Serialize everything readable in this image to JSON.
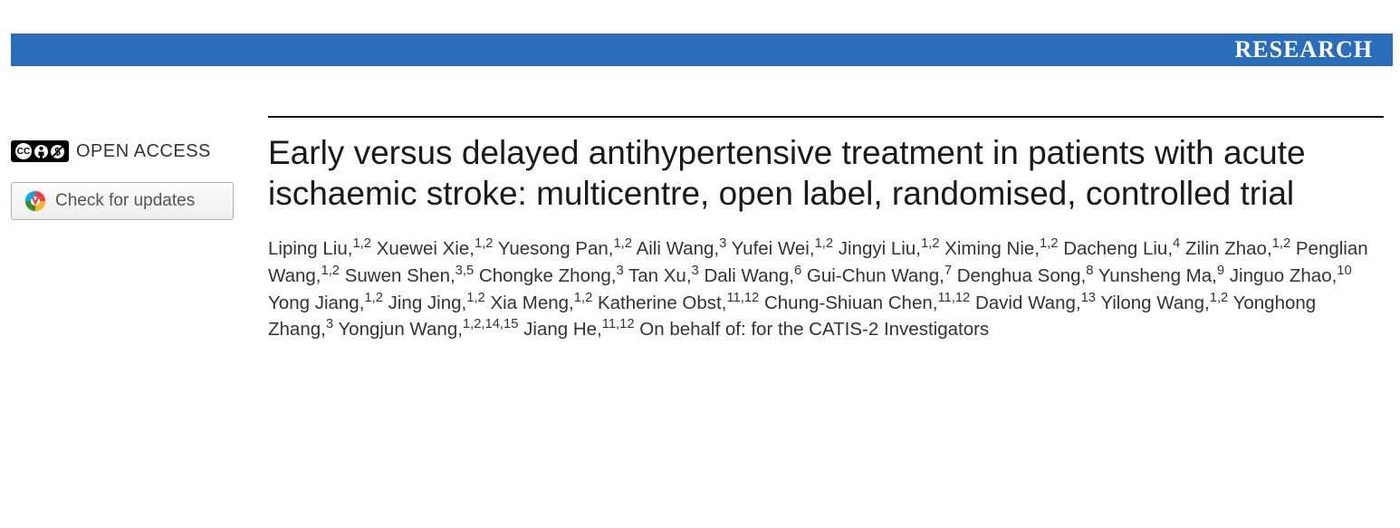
{
  "banner": {
    "label": "RESEARCH",
    "background_color": "#2a6ebb",
    "text_color": "#ffffff"
  },
  "sidebar": {
    "open_access_label": "OPEN ACCESS",
    "cc_text": "CC",
    "check_updates_label": "Check for updates"
  },
  "article": {
    "title": "Early versus delayed antihypertensive treatment in patients with acute ischaemic stroke: multicentre, open label, randomised, controlled trial",
    "authors": [
      {
        "name": "Liping Liu",
        "aff": "1,2"
      },
      {
        "name": "Xuewei Xie",
        "aff": "1,2"
      },
      {
        "name": "Yuesong Pan",
        "aff": "1,2"
      },
      {
        "name": "Aili Wang",
        "aff": "3"
      },
      {
        "name": "Yufei Wei",
        "aff": "1,2"
      },
      {
        "name": "Jingyi Liu",
        "aff": "1,2"
      },
      {
        "name": "Ximing Nie",
        "aff": "1,2"
      },
      {
        "name": "Dacheng Liu",
        "aff": "4"
      },
      {
        "name": "Zilin Zhao",
        "aff": "1,2"
      },
      {
        "name": "Penglian Wang",
        "aff": "1,2"
      },
      {
        "name": "Suwen Shen",
        "aff": "3,5"
      },
      {
        "name": "Chongke Zhong",
        "aff": "3"
      },
      {
        "name": "Tan Xu",
        "aff": "3"
      },
      {
        "name": "Dali Wang",
        "aff": "6"
      },
      {
        "name": "Gui-Chun Wang",
        "aff": "7"
      },
      {
        "name": "Denghua Song",
        "aff": "8"
      },
      {
        "name": "Yunsheng Ma",
        "aff": "9"
      },
      {
        "name": "Jinguo Zhao",
        "aff": "10"
      },
      {
        "name": "Yong Jiang",
        "aff": "1,2"
      },
      {
        "name": "Jing Jing",
        "aff": "1,2"
      },
      {
        "name": "Xia Meng",
        "aff": "1,2"
      },
      {
        "name": "Katherine Obst",
        "aff": "11,12"
      },
      {
        "name": "Chung-Shiuan Chen",
        "aff": "11,12"
      },
      {
        "name": "David Wang",
        "aff": "13"
      },
      {
        "name": "Yilong Wang",
        "aff": "1,2"
      },
      {
        "name": "Yonghong Zhang",
        "aff": "3"
      },
      {
        "name": "Yongjun Wang",
        "aff": "1,2,14,15"
      },
      {
        "name": "Jiang He",
        "aff": "11,12"
      }
    ],
    "behalf_text": "On behalf of: for the CATIS-2 Investigators"
  },
  "colors": {
    "rule": "#000000",
    "title_color": "#1a1a1a",
    "author_color": "#333333",
    "background": "#ffffff"
  }
}
